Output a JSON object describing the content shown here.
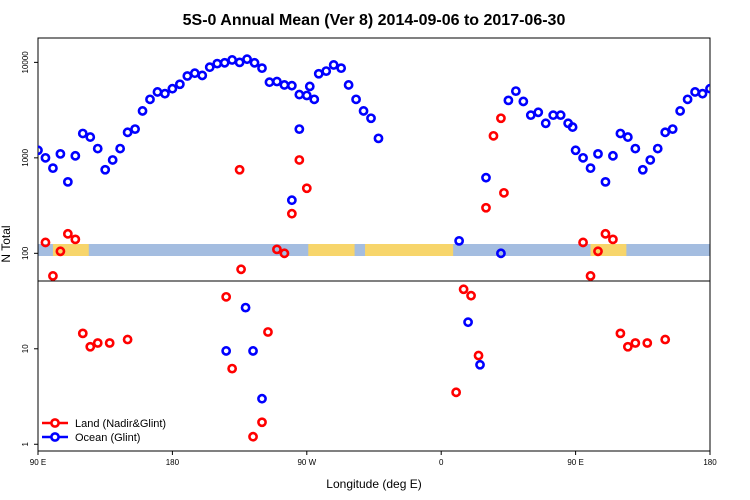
{
  "chart_data": {
    "type": "scatter",
    "title": "5S-0 Annual Mean (Ver 8)   2014-09-06 to 2017-06-30",
    "xlabel": "Longitude (deg E)",
    "ylabel": "N Total",
    "x_tick_labels": [
      "90 E",
      "180",
      "90 W",
      "0",
      "90 E",
      "180"
    ],
    "y_tick_labels": [
      "1",
      "10",
      "100",
      "1000",
      "10000"
    ],
    "y_scale": "log",
    "ylim": [
      0.85,
      18000
    ],
    "legend_position": "bottom-left",
    "map_strip": {
      "water_color": "#a4bde0",
      "land_color": "#f7d56b"
    },
    "series": [
      {
        "name": "Land (Nadir&Glint)",
        "color": "#ff0000",
        "points": [
          [
            95,
            130
          ],
          [
            100,
            58
          ],
          [
            105,
            105
          ],
          [
            110,
            160
          ],
          [
            115,
            140
          ],
          [
            120,
            14.5
          ],
          [
            125,
            10.5
          ],
          [
            130,
            11.5
          ],
          [
            138,
            11.5
          ],
          [
            150,
            12.5
          ],
          [
            -144,
            35
          ],
          [
            -140,
            6.2
          ],
          [
            -135,
            750
          ],
          [
            -134,
            68
          ],
          [
            -126,
            1.2
          ],
          [
            -120,
            1.7
          ],
          [
            -116,
            15
          ],
          [
            -110,
            110
          ],
          [
            -105,
            100
          ],
          [
            -100,
            260
          ],
          [
            -95,
            950
          ],
          [
            -90,
            480
          ],
          [
            10,
            3.5
          ],
          [
            15,
            42
          ],
          [
            20,
            36
          ],
          [
            25,
            8.5
          ],
          [
            30,
            300
          ],
          [
            35,
            1700
          ],
          [
            40,
            2600
          ],
          [
            42,
            430
          ]
        ]
      },
      {
        "name": "Ocean (Glint)",
        "color": "#0000ff",
        "points": [
          [
            90,
            1200
          ],
          [
            95,
            1000
          ],
          [
            100,
            780
          ],
          [
            105,
            1100
          ],
          [
            110,
            560
          ],
          [
            115,
            1050
          ],
          [
            120,
            1800
          ],
          [
            125,
            1650
          ],
          [
            130,
            1250
          ],
          [
            135,
            750
          ],
          [
            140,
            950
          ],
          [
            145,
            1250
          ],
          [
            150,
            1850
          ],
          [
            155,
            2000
          ],
          [
            160,
            3100
          ],
          [
            165,
            4100
          ],
          [
            170,
            4900
          ],
          [
            175,
            4700
          ],
          [
            180,
            5300
          ],
          [
            -175,
            5900
          ],
          [
            -170,
            7200
          ],
          [
            -165,
            7700
          ],
          [
            -160,
            7300
          ],
          [
            -155,
            8900
          ],
          [
            -150,
            9700
          ],
          [
            -145,
            9900
          ],
          [
            -140,
            10600
          ],
          [
            -135,
            10000
          ],
          [
            -130,
            10800
          ],
          [
            -125,
            9900
          ],
          [
            -120,
            8700
          ],
          [
            -115,
            6200
          ],
          [
            -110,
            6300
          ],
          [
            -105,
            5800
          ],
          [
            -100,
            5700
          ],
          [
            -95,
            4600
          ],
          [
            -90,
            4500
          ],
          [
            -85,
            4100
          ],
          [
            -144,
            9.5
          ],
          [
            -131,
            27
          ],
          [
            -126,
            9.5
          ],
          [
            -120,
            3.0
          ],
          [
            -100,
            360
          ],
          [
            -95,
            2000
          ],
          [
            -88,
            5600
          ],
          [
            -82,
            7600
          ],
          [
            -77,
            8100
          ],
          [
            -72,
            9400
          ],
          [
            -67,
            8700
          ],
          [
            -62,
            5800
          ],
          [
            -57,
            4100
          ],
          [
            -52,
            3100
          ],
          [
            -47,
            2600
          ],
          [
            -42,
            1600
          ],
          [
            12,
            135
          ],
          [
            18,
            19
          ],
          [
            26,
            6.8
          ],
          [
            30,
            620
          ],
          [
            40,
            100
          ],
          [
            45,
            4000
          ],
          [
            50,
            5000
          ],
          [
            55,
            3900
          ],
          [
            60,
            2800
          ],
          [
            65,
            3000
          ],
          [
            70,
            2300
          ],
          [
            75,
            2800
          ],
          [
            80,
            2800
          ],
          [
            85,
            2300
          ],
          [
            88,
            2100
          ]
        ]
      }
    ]
  }
}
